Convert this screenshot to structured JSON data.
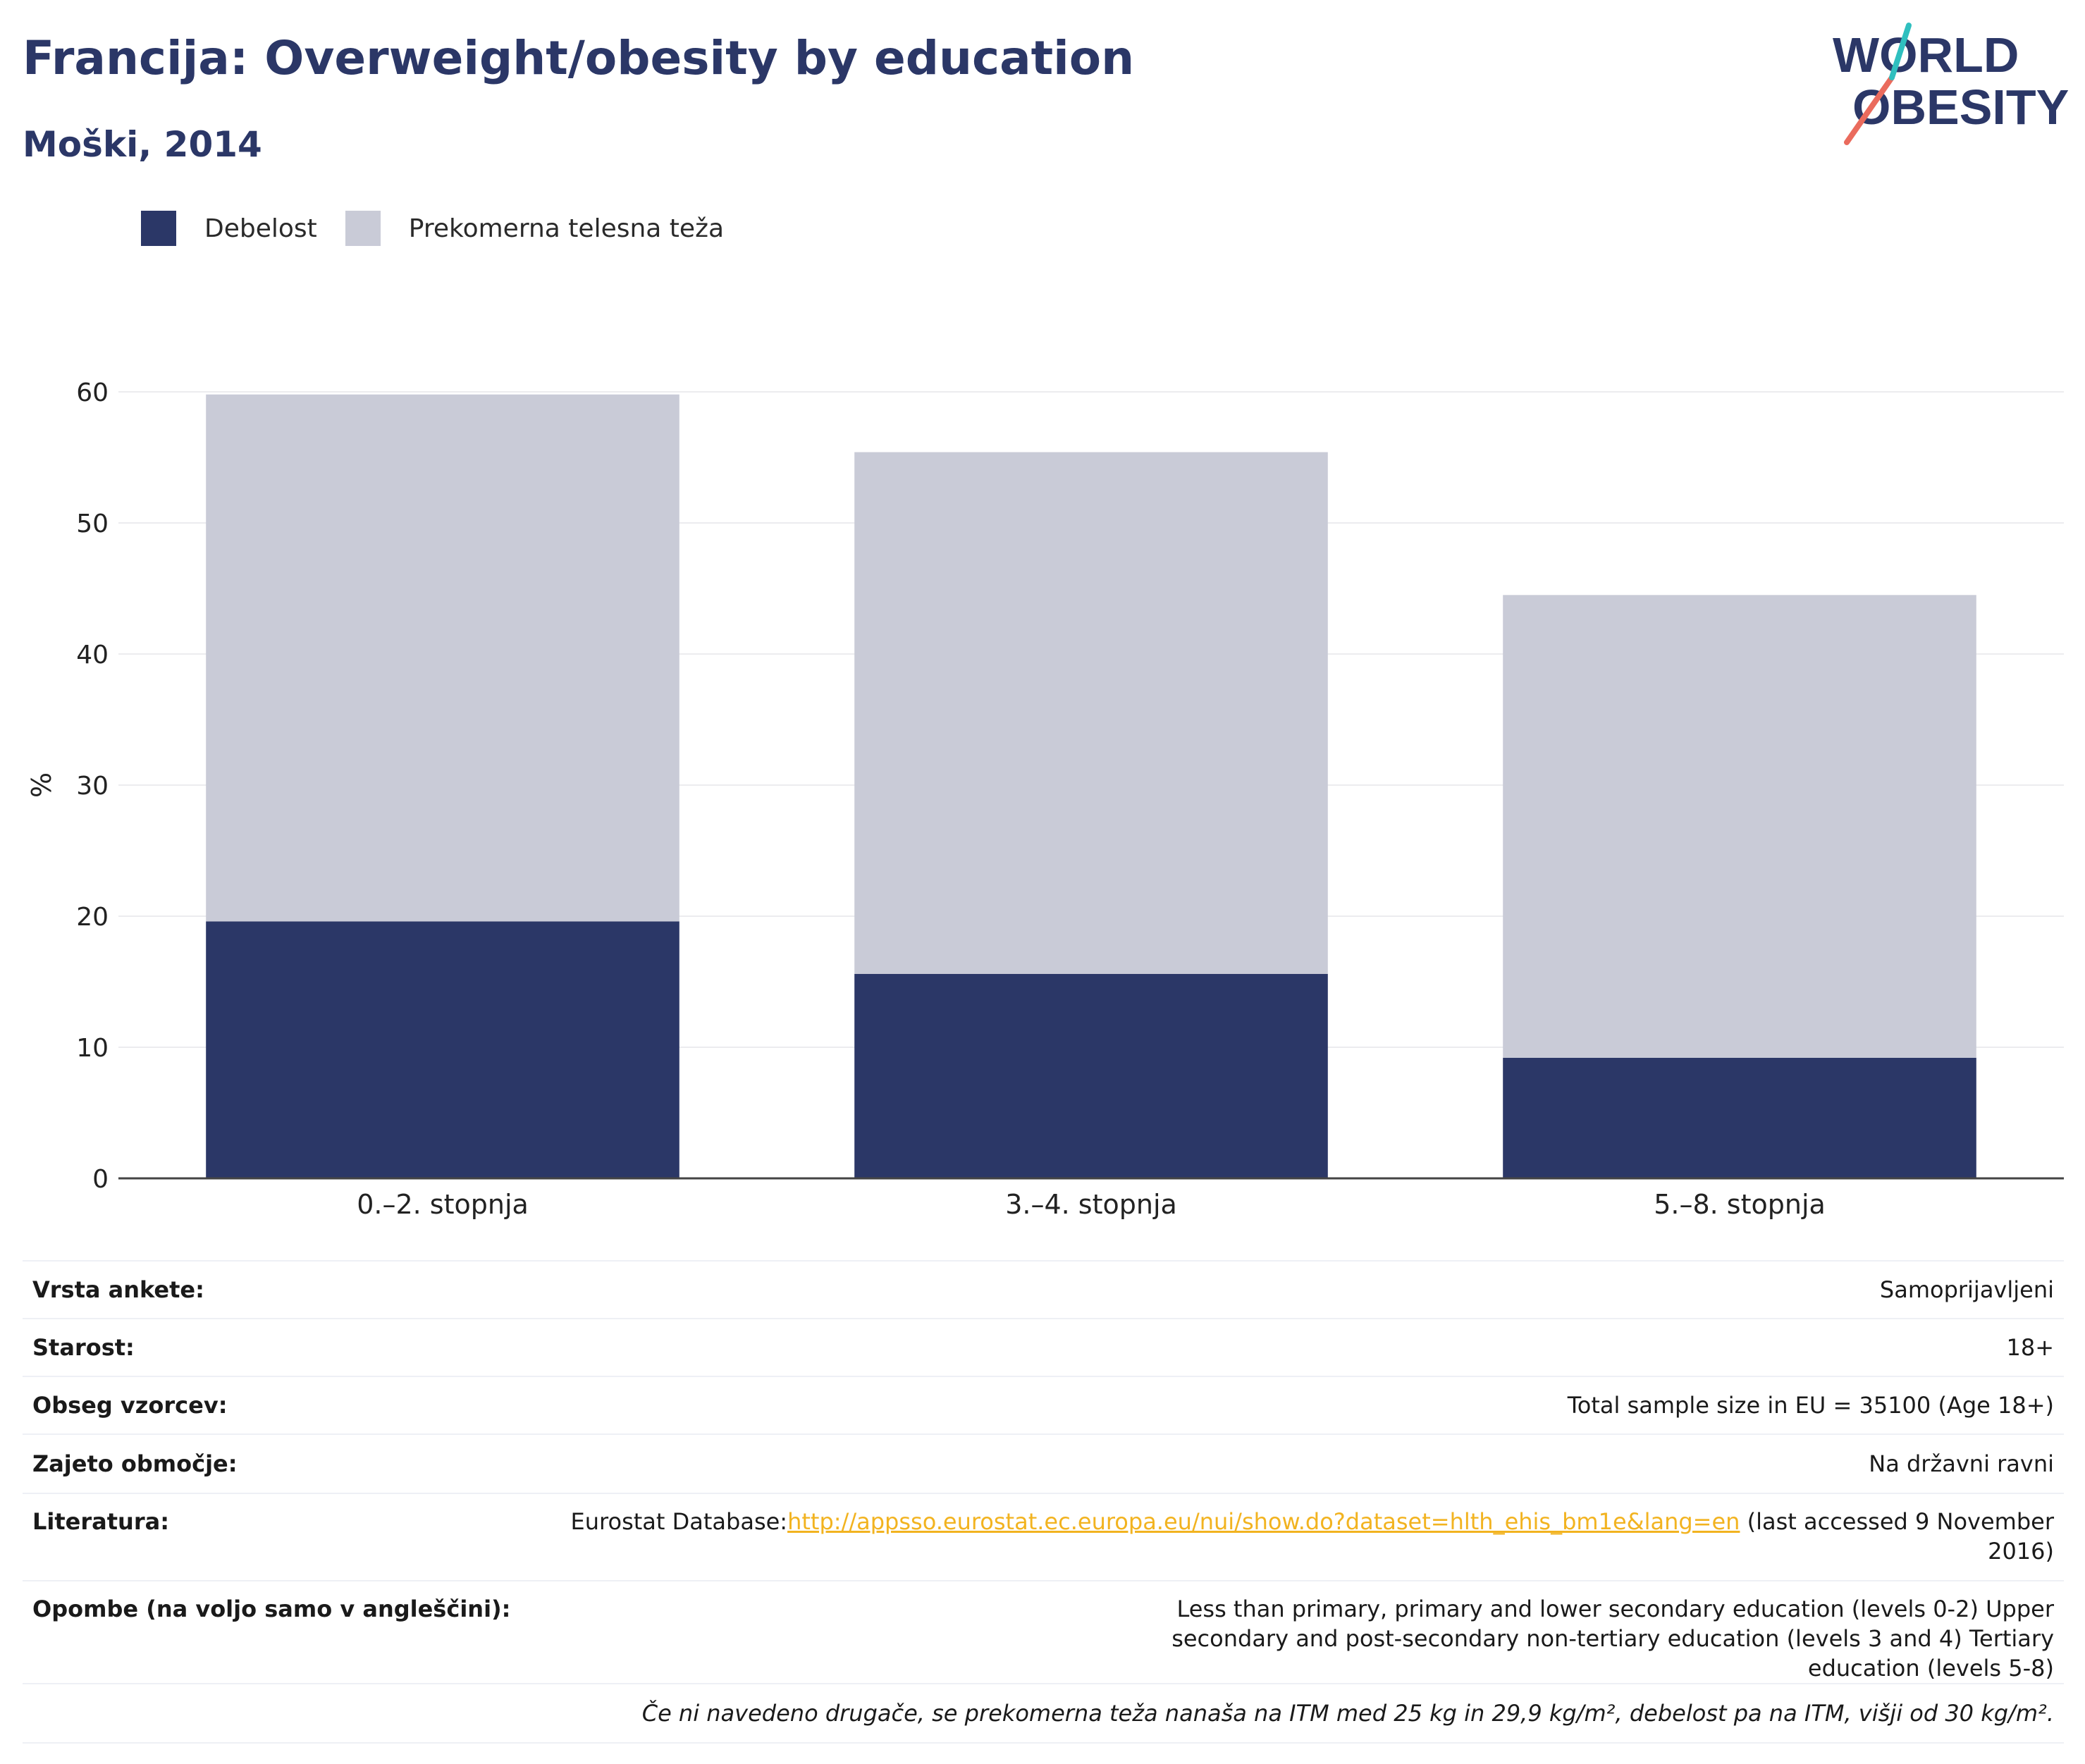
{
  "header": {
    "title": "Francija: Overweight/obesity by education",
    "subtitle": "Moški, 2014",
    "logo_line1": "WORLD",
    "logo_line2": "OBESITY"
  },
  "legend": [
    {
      "label": "Debelost",
      "color": "#2b3767"
    },
    {
      "label": "Prekomerna telesna teža",
      "color": "#c9cbd7"
    }
  ],
  "chart_data": {
    "type": "bar",
    "stacked": true,
    "categories": [
      "0.–2. stopnja",
      "3.–4. stopnja",
      "5.–8. stopnja"
    ],
    "series": [
      {
        "name": "Debelost",
        "color": "#2b3767",
        "values": [
          19.6,
          15.6,
          9.2
        ]
      },
      {
        "name": "Prekomerna telesna teža",
        "color": "#c9cbd7",
        "values": [
          40.2,
          39.8,
          35.3
        ]
      }
    ],
    "ylabel": "%",
    "ylim": [
      0,
      60
    ],
    "yticks": [
      0,
      10,
      20,
      30,
      40,
      50,
      60
    ],
    "grid": true,
    "legend_position": "top-left"
  },
  "meta": {
    "survey_type": {
      "label": "Vrsta ankete:",
      "value": "Samoprijavljeni"
    },
    "age": {
      "label": "Starost:",
      "value": "18+"
    },
    "sample": {
      "label": "Obseg vzorcev:",
      "value": "Total sample size in EU = 35100 (Age 18+)"
    },
    "area": {
      "label": "Zajeto območje:",
      "value": "Na državni ravni"
    },
    "literature": {
      "label": "Literatura:",
      "prefix": "Eurostat Database:",
      "link": "http://appsso.eurostat.ec.europa.eu/nui/show.do?dataset=hlth_ehis_bm1e&lang=en",
      "suffix": " (last accessed 9 November 2016)"
    },
    "notes": {
      "label": "Opombe (na voljo samo v angleščini):",
      "value": "Less than primary, primary and lower secondary education (levels 0-2) Upper secondary and post-secondary non-tertiary education (levels 3 and 4) Tertiary education (levels 5-8)"
    },
    "footnote": "Če ni navedeno drugače, se prekomerna teža nanaša na ITM med 25 kg in 29,9 kg/m², debelost pa na ITM, višji od 30 kg/m²."
  }
}
